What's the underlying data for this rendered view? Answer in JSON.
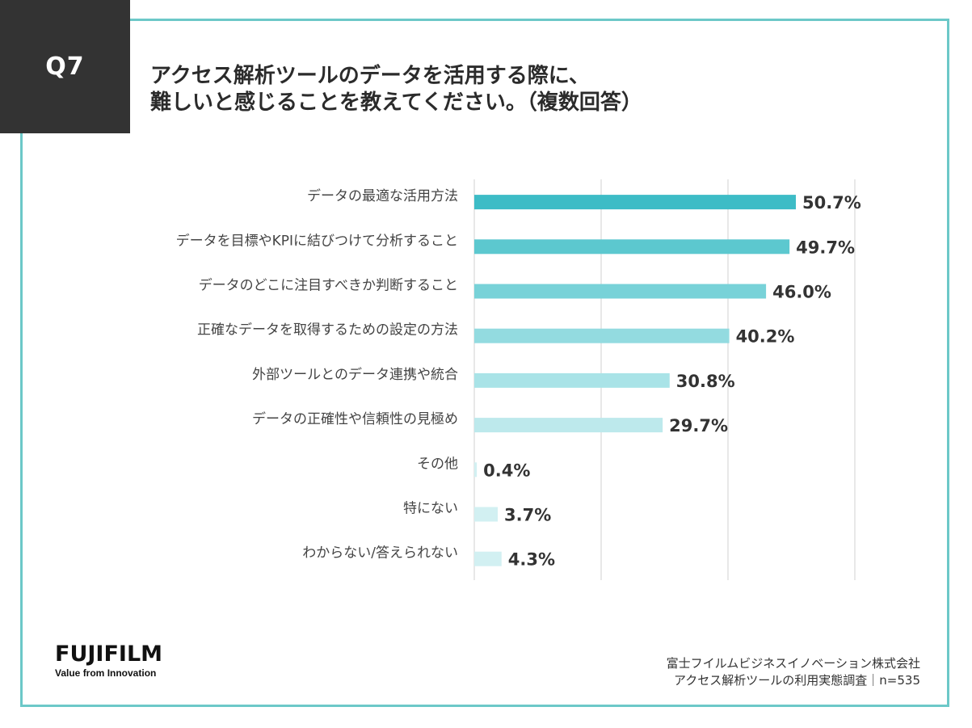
{
  "header": {
    "question": "Q7",
    "title_line1": "アクセス解析ツールのデータを活用する際に、",
    "title_line2": "難しいと感じることを教えてください。（複数回答）"
  },
  "chart_data": {
    "type": "bar",
    "orientation": "horizontal",
    "categories": [
      "データの最適な活用方法",
      "データを目標やKPIに結びつけて分析すること",
      "データのどこに注目すべきか判断すること",
      "正確なデータを取得するための設定の方法",
      "外部ツールとのデータ連携や統合",
      "データの正確性や信頼性の見極め",
      "その他",
      "特にない",
      "わからない/答えられない"
    ],
    "values": [
      50.7,
      49.7,
      46.0,
      40.2,
      30.8,
      29.7,
      0.4,
      3.7,
      4.3
    ],
    "value_labels": [
      "50.7%",
      "49.7%",
      "46.0%",
      "40.2%",
      "30.8%",
      "29.7%",
      "0.4%",
      "3.7%",
      "4.3%"
    ],
    "xlim": [
      0,
      60
    ],
    "grid": true,
    "bar_colors": [
      "#3dbcc6",
      "#5cc8cf",
      "#78d2d8",
      "#93dbe0",
      "#a9e3e7",
      "#bde9ec",
      "#d2f0f2",
      "#d2f0f2",
      "#d2f0f2"
    ]
  },
  "colors": {
    "frame": "#6cc8c8",
    "badge": "#333333",
    "gridline": "#d8d8d8"
  },
  "logo": {
    "brand": "FUJIFILM",
    "tagline": "Value from Innovation"
  },
  "source": {
    "line1": "富士フイルムビジネスイノベーション株式会社",
    "line2": "アクセス解析ツールの利用実態調査｜n=535"
  }
}
